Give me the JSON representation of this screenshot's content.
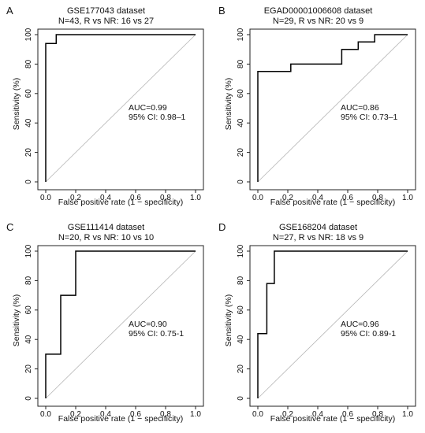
{
  "chart_data": [
    {
      "type": "line",
      "panel_label": "A",
      "title": "GSE177043 dataset",
      "subtitle": "N=43, R vs NR: 16 vs 27",
      "xlabel": "False positive rate (1 − specificity)",
      "ylabel": "Sensitivity (%)",
      "xlim": [
        0,
        1
      ],
      "ylim": [
        0,
        100
      ],
      "xticks": [
        0.0,
        0.2,
        0.4,
        0.6,
        0.8,
        1.0
      ],
      "xtick_labels": [
        "0.0",
        "0.2",
        "0.4",
        "0.6",
        "0.8",
        "1.0"
      ],
      "yticks": [
        0,
        20,
        40,
        60,
        80,
        100
      ],
      "ytick_labels": [
        "0",
        "20",
        "40",
        "60",
        "80",
        "100"
      ],
      "auc_text": "AUC=0.99",
      "ci_text": "95% CI: 0.98–1",
      "diagonal": true,
      "series": [
        {
          "x": [
            0,
            0,
            0.07,
            0.07,
            1
          ],
          "y": [
            0,
            94,
            94,
            100,
            100
          ]
        }
      ]
    },
    {
      "type": "line",
      "panel_label": "B",
      "title": "EGAD00001006608 dataset",
      "subtitle": "N=29, R vs NR: 20 vs 9",
      "xlabel": "False positive rate (1 − specificity)",
      "ylabel": "Sensitivity (%)",
      "xlim": [
        0,
        1
      ],
      "ylim": [
        0,
        100
      ],
      "xticks": [
        0.0,
        0.2,
        0.4,
        0.6,
        0.8,
        1.0
      ],
      "xtick_labels": [
        "0.0",
        "0.2",
        "0.4",
        "0.6",
        "0.8",
        "1.0"
      ],
      "yticks": [
        0,
        20,
        40,
        60,
        80,
        100
      ],
      "ytick_labels": [
        "0",
        "20",
        "40",
        "60",
        "80",
        "100"
      ],
      "auc_text": "AUC=0.86",
      "ci_text": "95% CI: 0.73–1",
      "diagonal": true,
      "series": [
        {
          "x": [
            0,
            0,
            0.22,
            0.22,
            0.56,
            0.56,
            0.67,
            0.67,
            0.78,
            0.78,
            1
          ],
          "y": [
            0,
            75,
            75,
            80,
            80,
            90,
            90,
            95,
            95,
            100,
            100
          ]
        }
      ]
    },
    {
      "type": "line",
      "panel_label": "C",
      "title": "GSE111414 dataset",
      "subtitle": "N=20, R vs NR: 10 vs 10",
      "xlabel": "False positive rate (1 − specificity)",
      "ylabel": "Sensitivity (%)",
      "xlim": [
        0,
        1
      ],
      "ylim": [
        0,
        100
      ],
      "xticks": [
        0.0,
        0.2,
        0.4,
        0.6,
        0.8,
        1.0
      ],
      "xtick_labels": [
        "0.0",
        "0.2",
        "0.4",
        "0.6",
        "0.8",
        "1.0"
      ],
      "yticks": [
        0,
        20,
        40,
        60,
        80,
        100
      ],
      "ytick_labels": [
        "0",
        "20",
        "40",
        "60",
        "80",
        "100"
      ],
      "auc_text": "AUC=0.90",
      "ci_text": "95% CI: 0.75-1",
      "diagonal": true,
      "series": [
        {
          "x": [
            0,
            0,
            0.1,
            0.1,
            0.2,
            0.2,
            1
          ],
          "y": [
            0,
            30,
            30,
            70,
            70,
            100,
            100
          ]
        }
      ]
    },
    {
      "type": "line",
      "panel_label": "D",
      "title": "GSE168204 dataset",
      "subtitle": "N=27, R vs NR: 18 vs 9",
      "xlabel": "False positive rate (1 − specificity)",
      "ylabel": "Sensitivity (%)",
      "xlim": [
        0,
        1
      ],
      "ylim": [
        0,
        100
      ],
      "xticks": [
        0.0,
        0.2,
        0.4,
        0.6,
        0.8,
        1.0
      ],
      "xtick_labels": [
        "0.0",
        "0.2",
        "0.4",
        "0.6",
        "0.8",
        "1.0"
      ],
      "yticks": [
        0,
        20,
        40,
        60,
        80,
        100
      ],
      "ytick_labels": [
        "0",
        "20",
        "40",
        "60",
        "80",
        "100"
      ],
      "auc_text": "AUC=0.96",
      "ci_text": "95% CI: 0.89-1",
      "diagonal": true,
      "series": [
        {
          "x": [
            0,
            0,
            0.06,
            0.06,
            0.11,
            0.11,
            1
          ],
          "y": [
            0,
            44,
            44,
            78,
            78,
            100,
            100
          ]
        }
      ]
    }
  ]
}
